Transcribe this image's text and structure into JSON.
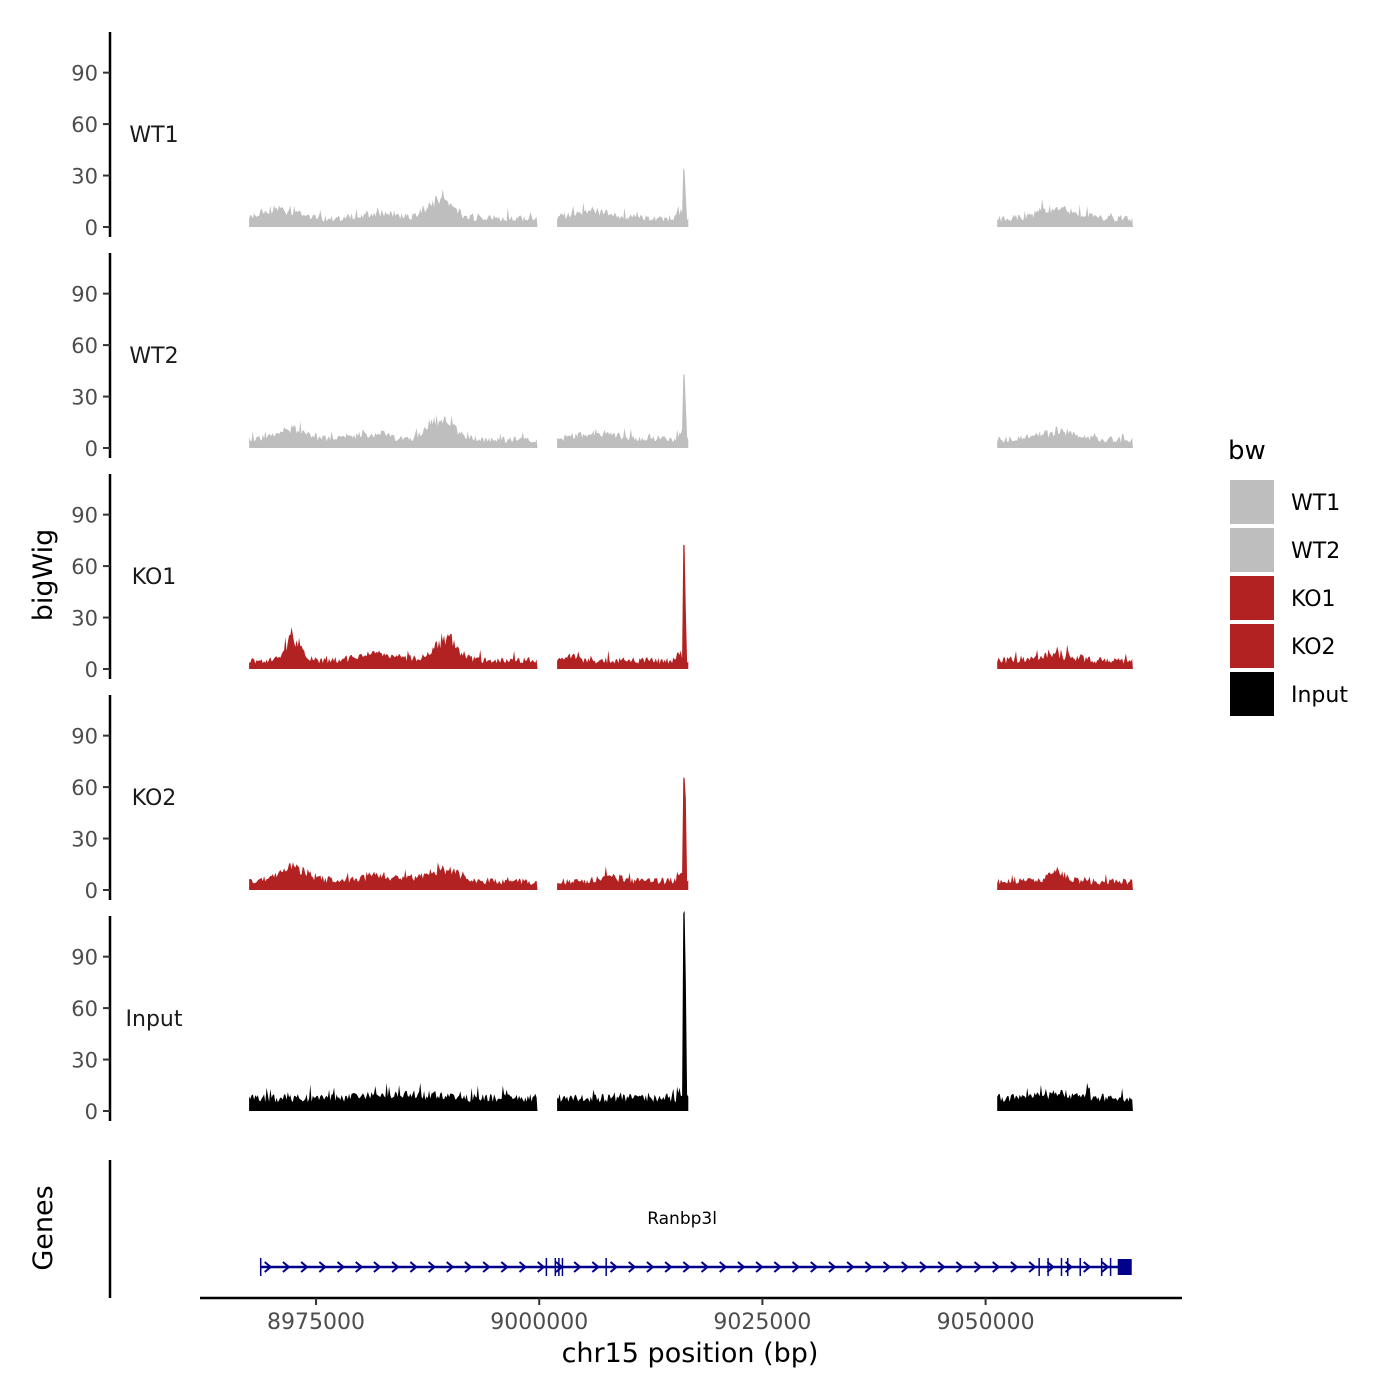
{
  "chart_data": {
    "type": "area",
    "xlabel": "chr15 position (bp)",
    "ylabel": "bigWig",
    "xlim": [
      8962000,
      9072000
    ],
    "x_ticks": [
      8975000,
      9000000,
      9025000,
      9050000
    ],
    "x_tick_labels": [
      "8975000",
      "9000000",
      "9025000",
      "9050000"
    ],
    "ylim": [
      0,
      115
    ],
    "y_ticks": [
      0,
      30,
      60,
      90
    ],
    "y_tick_labels": [
      "0",
      "30",
      "60",
      "90"
    ],
    "segments": [
      [
        8967500,
        8999800
      ],
      [
        9002000,
        9016700
      ],
      [
        9051300,
        9066500
      ]
    ],
    "tracks": [
      {
        "name": "WT1",
        "color": "#BEBEBE",
        "base": 3,
        "noise": 4,
        "bumps": [
          [
            8971000,
            6,
            2500
          ],
          [
            8982000,
            3,
            3000
          ],
          [
            8989000,
            12,
            2000
          ],
          [
            9006000,
            5,
            3000
          ],
          [
            9058000,
            6,
            3000
          ]
        ],
        "peak": 28,
        "peak2": 13
      },
      {
        "name": "WT2",
        "color": "#BEBEBE",
        "base": 3,
        "noise": 4,
        "bumps": [
          [
            8972000,
            6,
            2500
          ],
          [
            8981000,
            4,
            3000
          ],
          [
            8989000,
            13,
            2000
          ],
          [
            9006000,
            4,
            3000
          ],
          [
            9058000,
            5,
            3000
          ]
        ],
        "peak": 38,
        "peak2": 22
      },
      {
        "name": "KO1",
        "color": "#B22222",
        "base": 3,
        "noise": 4,
        "bumps": [
          [
            8972500,
            14,
            1200
          ],
          [
            8982000,
            4,
            3000
          ],
          [
            8989500,
            13,
            1800
          ],
          [
            9003000,
            3,
            1500
          ],
          [
            9058000,
            4,
            2500
          ]
        ],
        "peak": 69,
        "peak2": 30
      },
      {
        "name": "KO2",
        "color": "#B22222",
        "base": 3,
        "noise": 4,
        "bumps": [
          [
            8972500,
            8,
            2500
          ],
          [
            8982000,
            4,
            3000
          ],
          [
            8989000,
            8,
            2500
          ],
          [
            9008000,
            3,
            2000
          ],
          [
            9058000,
            6,
            1500
          ]
        ],
        "peak": 59,
        "peak2": 45
      },
      {
        "name": "Input",
        "color": "#000000",
        "base": 5,
        "noise": 5,
        "bumps": [
          [
            8985000,
            2,
            6000
          ],
          [
            9058000,
            3,
            3000
          ]
        ],
        "peak": 108,
        "peak2": 68
      }
    ],
    "legend": {
      "title": "bw",
      "entries": [
        {
          "label": "WT1",
          "color": "#BEBEBE"
        },
        {
          "label": "WT2",
          "color": "#BEBEBE"
        },
        {
          "label": "KO1",
          "color": "#B22222"
        },
        {
          "label": "KO2",
          "color": "#B22222"
        },
        {
          "label": "Input",
          "color": "#000000"
        }
      ]
    },
    "genes": {
      "track_label": "Genes",
      "gene_name": "Ranbp3l",
      "start": 8968800,
      "end": 9065800,
      "color": "#00008B",
      "exons": [
        8968800,
        9000800,
        9001800,
        9002200,
        9002600,
        9007500,
        9056000,
        9057000,
        9058500,
        9059200,
        9060600,
        9063000,
        9064000
      ]
    }
  }
}
